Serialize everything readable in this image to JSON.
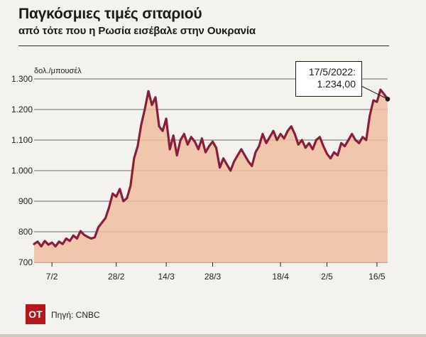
{
  "header": {
    "title": "Παγκόσμιες τιμές σιταριού",
    "subtitle": "από τότε που η Ρωσία εισέβαλε στην Ουκρανία"
  },
  "footer": {
    "logo_text": "OT",
    "source": "Πηγή: CNBC"
  },
  "colors": {
    "line": "#8a1d3a",
    "area": "#eebfa0",
    "logo": "#b5151d"
  },
  "chart_data": {
    "type": "area",
    "ylabel": "δολ./μπουσέλ",
    "ylim": [
      700,
      1300
    ],
    "yticks": [
      700,
      800,
      900,
      1000,
      1100,
      1200,
      1300
    ],
    "ytick_labels": [
      "700",
      "800",
      "900",
      "1.000",
      "1.100",
      "1.200",
      "1.300"
    ],
    "xlim": [
      0,
      99
    ],
    "xticks": [
      {
        "x": 5,
        "label": "7/2"
      },
      {
        "x": 23,
        "label": "28/2"
      },
      {
        "x": 37,
        "label": "14/3"
      },
      {
        "x": 50,
        "label": "28/3"
      },
      {
        "x": 69,
        "label": "18/4"
      },
      {
        "x": 82,
        "label": "2/5"
      },
      {
        "x": 96,
        "label": "16/5"
      }
    ],
    "grid": true,
    "annotation": {
      "x": 99,
      "y": 1234,
      "date": "17/5/2022:",
      "value": "1.234,00"
    },
    "series": [
      {
        "values": [
          [
            0,
            760
          ],
          [
            1,
            768
          ],
          [
            2,
            752
          ],
          [
            3,
            770
          ],
          [
            4,
            758
          ],
          [
            5,
            765
          ],
          [
            6,
            752
          ],
          [
            7,
            768
          ],
          [
            8,
            760
          ],
          [
            9,
            778
          ],
          [
            10,
            770
          ],
          [
            11,
            788
          ],
          [
            12,
            778
          ],
          [
            13,
            802
          ],
          [
            14,
            790
          ],
          [
            15,
            783
          ],
          [
            16,
            778
          ],
          [
            17,
            782
          ],
          [
            18,
            815
          ],
          [
            19,
            830
          ],
          [
            20,
            845
          ],
          [
            21,
            880
          ],
          [
            22,
            925
          ],
          [
            23,
            915
          ],
          [
            24,
            940
          ],
          [
            25,
            900
          ],
          [
            26,
            910
          ],
          [
            27,
            950
          ],
          [
            28,
            1040
          ],
          [
            29,
            1080
          ],
          [
            30,
            1150
          ],
          [
            31,
            1200
          ],
          [
            32,
            1260
          ],
          [
            33,
            1215
          ],
          [
            34,
            1240
          ],
          [
            35,
            1145
          ],
          [
            36,
            1130
          ],
          [
            37,
            1170
          ],
          [
            38,
            1070
          ],
          [
            39,
            1115
          ],
          [
            40,
            1050
          ],
          [
            41,
            1100
          ],
          [
            42,
            1120
          ],
          [
            43,
            1085
          ],
          [
            44,
            1110
          ],
          [
            45,
            1095
          ],
          [
            46,
            1070
          ],
          [
            47,
            1105
          ],
          [
            48,
            1060
          ],
          [
            49,
            1080
          ],
          [
            50,
            1095
          ],
          [
            51,
            1075
          ],
          [
            52,
            1010
          ],
          [
            53,
            1040
          ],
          [
            54,
            1020
          ],
          [
            55,
            1000
          ],
          [
            56,
            1030
          ],
          [
            57,
            1050
          ],
          [
            58,
            1070
          ],
          [
            59,
            1050
          ],
          [
            60,
            1030
          ],
          [
            61,
            1015
          ],
          [
            62,
            1060
          ],
          [
            63,
            1080
          ],
          [
            64,
            1120
          ],
          [
            65,
            1090
          ],
          [
            66,
            1110
          ],
          [
            67,
            1130
          ],
          [
            68,
            1100
          ],
          [
            69,
            1120
          ],
          [
            70,
            1105
          ],
          [
            71,
            1130
          ],
          [
            72,
            1145
          ],
          [
            73,
            1120
          ],
          [
            74,
            1085
          ],
          [
            75,
            1100
          ],
          [
            76,
            1075
          ],
          [
            77,
            1090
          ],
          [
            78,
            1070
          ],
          [
            79,
            1100
          ],
          [
            80,
            1110
          ],
          [
            81,
            1080
          ],
          [
            82,
            1055
          ],
          [
            83,
            1040
          ],
          [
            84,
            1060
          ],
          [
            85,
            1050
          ],
          [
            86,
            1090
          ],
          [
            87,
            1080
          ],
          [
            88,
            1100
          ],
          [
            89,
            1120
          ],
          [
            90,
            1100
          ],
          [
            91,
            1090
          ],
          [
            92,
            1110
          ],
          [
            93,
            1100
          ],
          [
            94,
            1180
          ],
          [
            95,
            1230
          ],
          [
            96,
            1225
          ],
          [
            97,
            1265
          ],
          [
            98,
            1250
          ],
          [
            99,
            1234
          ]
        ]
      }
    ]
  }
}
